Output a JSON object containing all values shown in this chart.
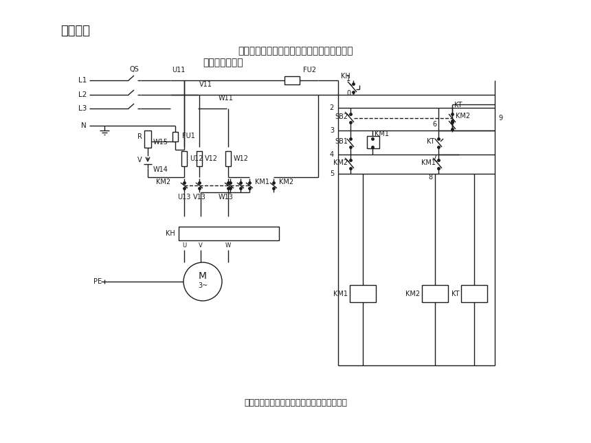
{
  "title": "工作任务",
  "subtitle_line1": "无变压器单相半波整流能耗制动自动控制线路",
  "subtitle_line2": "的安装与检修。",
  "bottom_label": "无变压器单相半波整流能耗制动自动控制线路",
  "bg_color": "#ffffff",
  "line_color": "#1a1a1a",
  "title_fontsize": 13,
  "label_fontsize": 7.5,
  "small_fontsize": 7
}
